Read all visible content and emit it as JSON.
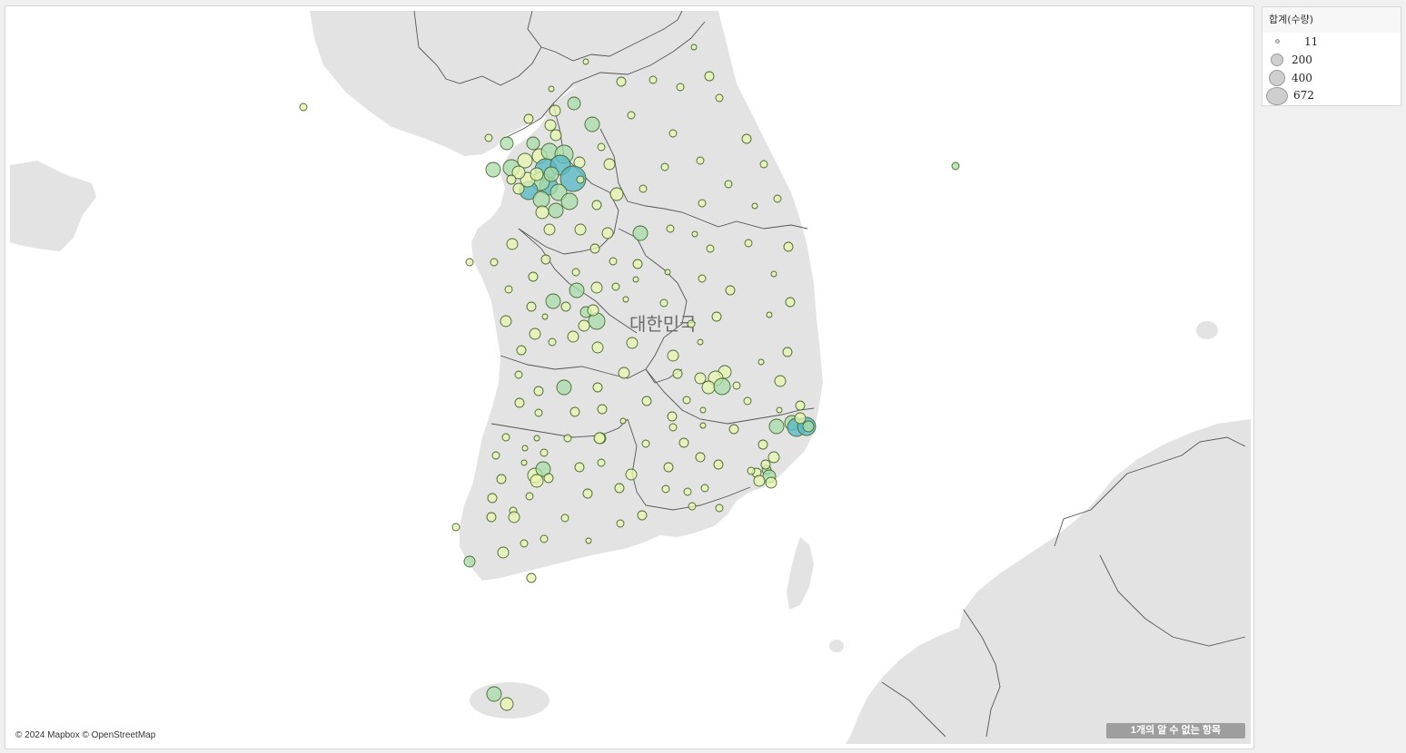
{
  "map": {
    "country_label": "대한민국",
    "attribution": "© 2024 Mapbox © OpenStreetMap",
    "unknown_items": "1개의 알 수 없는 항목",
    "colors": {
      "land": "#e3e3e3",
      "water": "#ffffff",
      "border": "#555555",
      "marker_low": "#e8f5b0",
      "marker_mid": "#a8dcaa",
      "marker_high": "#5bb9c6"
    }
  },
  "legend": {
    "title": "합계(수량)",
    "items": [
      {
        "label": "11",
        "value": 11
      },
      {
        "label": "200",
        "value": 200
      },
      {
        "label": "400",
        "value": 400
      },
      {
        "label": "672",
        "value": 672
      }
    ]
  }
}
